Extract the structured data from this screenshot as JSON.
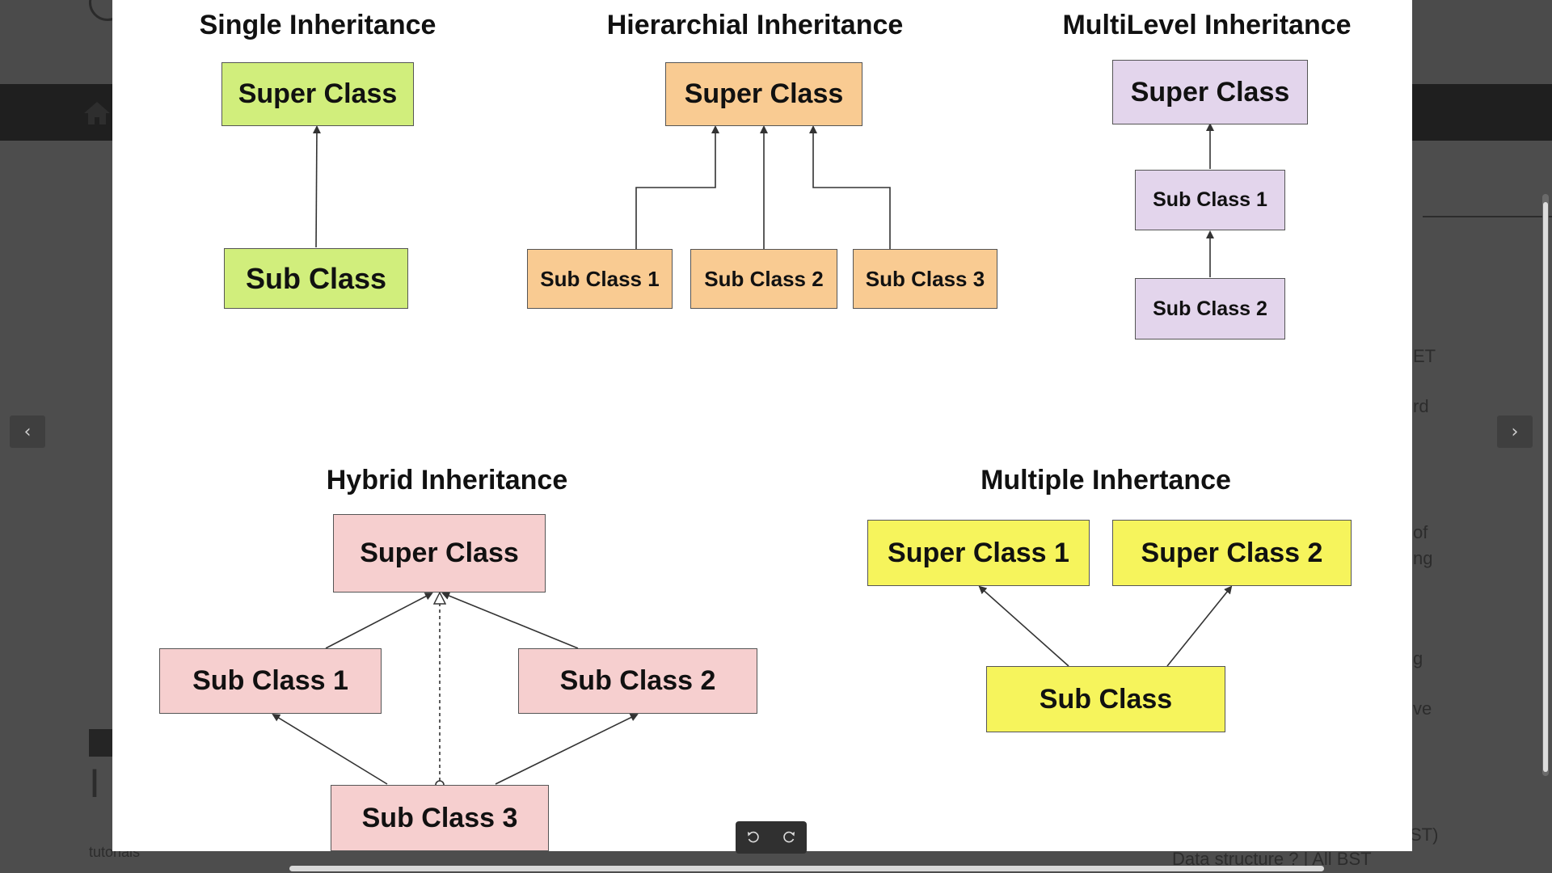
{
  "background_page": {
    "nav": {
      "home_icon": "home-icon"
    },
    "side_fragments": [
      "ET",
      "rd",
      "of",
      "ng",
      "g",
      "ve",
      "ST)"
    ],
    "article_title_fragment": "I",
    "meta_fragment": "tutorials",
    "bottom_link_fragment": "Data structure ? | All BST"
  },
  "lightbox": {
    "prev_label": "‹",
    "next_label": "›",
    "toolbar": {
      "rotate_left_icon": "rotate-left-icon",
      "rotate_right_icon": "rotate-right-icon"
    }
  },
  "diagram": {
    "colors": {
      "green": "#d1ee7c",
      "orange": "#f9cb92",
      "purple": "#e3d5ec",
      "pink": "#f6cfcf",
      "yellow": "#f6f45c"
    },
    "single": {
      "title": "Single Inheritance",
      "super": "Super Class",
      "sub": "Sub Class"
    },
    "hierarchical": {
      "title": "Hierarchial Inheritance",
      "super": "Super Class",
      "subs": [
        "Sub Class 1",
        "Sub Class 2",
        "Sub Class 3"
      ]
    },
    "multilevel": {
      "title": "MultiLevel Inheritance",
      "super": "Super Class",
      "sub1": "Sub Class 1",
      "sub2": "Sub Class 2"
    },
    "hybrid": {
      "title": "Hybrid Inheritance",
      "super": "Super Class",
      "sub1": "Sub Class 1",
      "sub2": "Sub Class 2",
      "sub3": "Sub Class 3"
    },
    "multiple": {
      "title": "Multiple Inhertance",
      "super1": "Super Class 1",
      "super2": "Super Class 2",
      "sub": "Sub Class"
    }
  }
}
